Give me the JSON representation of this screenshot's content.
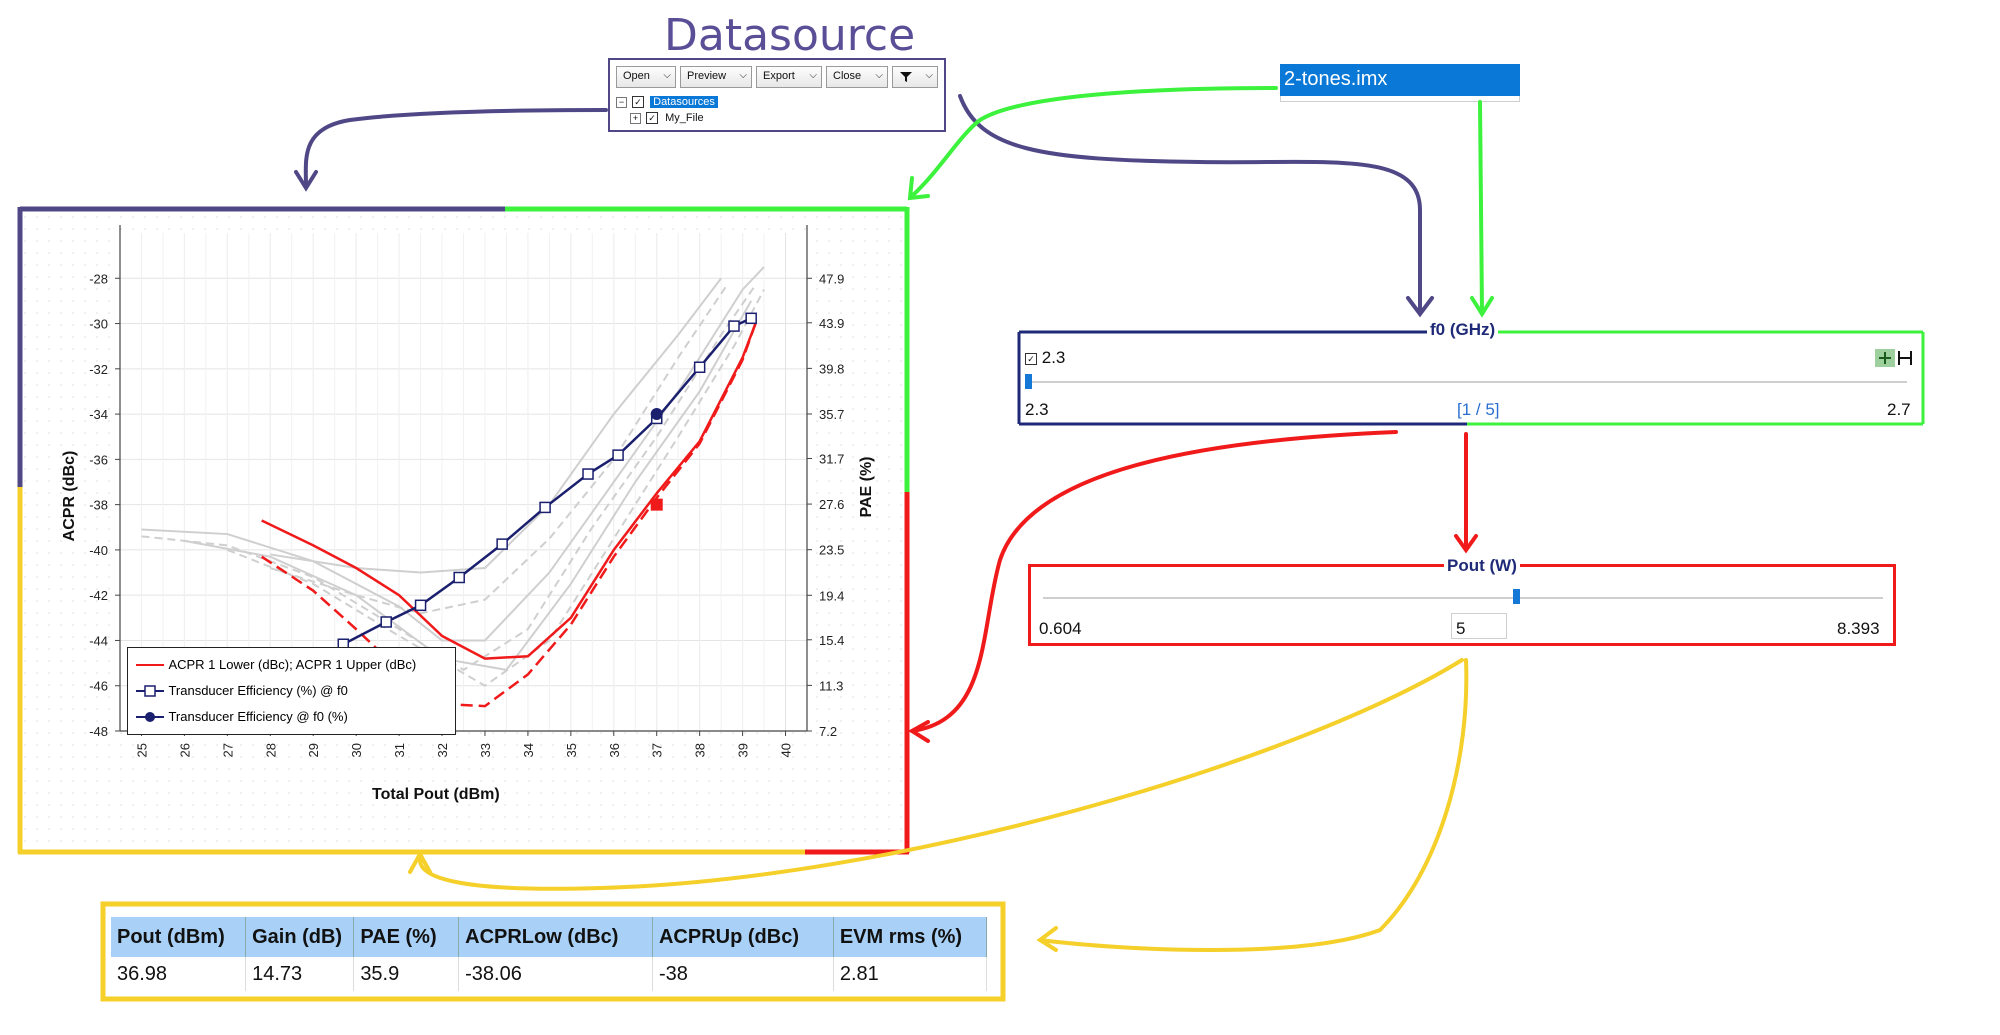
{
  "datasource": {
    "title": "Datasource",
    "buttons": [
      {
        "label": "Open"
      },
      {
        "label": "Preview"
      },
      {
        "label": "Export"
      },
      {
        "label": "Close"
      }
    ],
    "filter_icon": "funnel-icon",
    "tree": [
      {
        "label": "Datasources",
        "checked": true,
        "selected": true
      },
      {
        "label": "My_File",
        "checked": true,
        "selected": false
      }
    ]
  },
  "file": {
    "name": "2-tones.imx"
  },
  "f0": {
    "title": "f0 (GHz)",
    "checked_value": "2.3",
    "min": "2.3",
    "index": "[1 / 5]",
    "max": "2.7",
    "slider_fraction": 0
  },
  "pout": {
    "title": "Pout (W)",
    "min": "0.604",
    "value": "5",
    "max": "8.393",
    "slider_fraction": 0.56
  },
  "colors": {
    "purple": "#504886",
    "green": "#3cf23c",
    "red": "#f01a1a",
    "yellow": "#f5cf2a",
    "navy": "#1a1f6e",
    "highlight": "#0a78d7"
  },
  "chart_data": {
    "type": "line",
    "xlabel": "Total Pout (dBm)",
    "ylabel": "ACPR (dBc)",
    "y2label": "PAE (%)",
    "xlim": [
      24.5,
      40.5
    ],
    "ylim": [
      -48,
      -26
    ],
    "y2lim": [
      7.2,
      47.9
    ],
    "x_ticks": [
      "25",
      "26",
      "27",
      "28",
      "29",
      "30",
      "31",
      "32",
      "33",
      "34",
      "35",
      "36",
      "37",
      "38",
      "39",
      "40"
    ],
    "y_ticks": [
      "-28",
      "-30",
      "-32",
      "-34",
      "-36",
      "-38",
      "-40",
      "-42",
      "-44",
      "-46",
      "-48"
    ],
    "y2_ticks": [
      "47.9",
      "43.9",
      "39.8",
      "35.7",
      "31.7",
      "27.6",
      "23.5",
      "19.4",
      "15.4",
      "11.3",
      "7.2"
    ],
    "grid": true,
    "legend_position": "bottom-left",
    "legend": [
      {
        "label": "ACPR 1 Lower (dBc); ACPR 1 Upper (dBc)",
        "color": "#f01a1a",
        "marker": "line"
      },
      {
        "label": "Transducer Efficiency (%) @ f0",
        "color": "#1a1f6e",
        "marker": "open-square"
      },
      {
        "label": "Transducer Efficiency @ f0 (%)",
        "color": "#1a1f6e",
        "marker": "filled-circle"
      }
    ],
    "series": [
      {
        "axis": "y",
        "color": "#f01a1a",
        "style": "solid",
        "points": [
          [
            27.8,
            -38.7
          ],
          [
            29,
            -39.8
          ],
          [
            30,
            -40.8
          ],
          [
            31,
            -42
          ],
          [
            32,
            -43.8
          ],
          [
            33,
            -44.8
          ],
          [
            34,
            -44.7
          ],
          [
            35,
            -43
          ],
          [
            36,
            -40
          ],
          [
            37,
            -37.5
          ],
          [
            38,
            -35.2
          ],
          [
            39,
            -31.5
          ],
          [
            39.3,
            -30
          ]
        ]
      },
      {
        "axis": "y",
        "color": "#f01a1a",
        "style": "dashed",
        "points": [
          [
            27.8,
            -40.3
          ],
          [
            29,
            -41.8
          ],
          [
            30,
            -43.5
          ],
          [
            31,
            -45.3
          ],
          [
            32,
            -46.8
          ],
          [
            33,
            -46.9
          ],
          [
            34,
            -45.5
          ],
          [
            35,
            -43.3
          ],
          [
            36,
            -40.3
          ],
          [
            37,
            -37.7
          ],
          [
            38,
            -35.3
          ],
          [
            39,
            -31.6
          ],
          [
            39.3,
            -30
          ]
        ]
      },
      {
        "axis": "y2",
        "color": "#1a1f6e",
        "style": "solid",
        "marker": "open-square",
        "points": [
          [
            29.7,
            15
          ],
          [
            30.7,
            17
          ],
          [
            31.5,
            18.5
          ],
          [
            32.4,
            21
          ],
          [
            33.4,
            24
          ],
          [
            34.4,
            27.3
          ],
          [
            35.4,
            30.3
          ],
          [
            36.1,
            32
          ],
          [
            37,
            35.3
          ],
          [
            38,
            39.9
          ],
          [
            38.8,
            43.6
          ],
          [
            39.2,
            44.3
          ]
        ]
      },
      {
        "axis": "y2",
        "color": "#1a1f6e",
        "style": "solid",
        "marker": "filled-circle",
        "points": [
          [
            37,
            35.7
          ]
        ]
      },
      {
        "axis": "y",
        "color": "#f01a1a",
        "style": "marker",
        "marker": "filled-square",
        "points": [
          [
            37,
            -38
          ]
        ]
      }
    ]
  },
  "results": {
    "columns": [
      "Pout (dBm)",
      "Gain (dB)",
      "PAE (%)",
      "ACPRLow (dBc)",
      "ACPRUp (dBc)",
      "EVM rms (%)"
    ],
    "rows": [
      [
        "36.98",
        "14.73",
        "35.9",
        "-38.06",
        "-38",
        "2.81"
      ]
    ]
  }
}
